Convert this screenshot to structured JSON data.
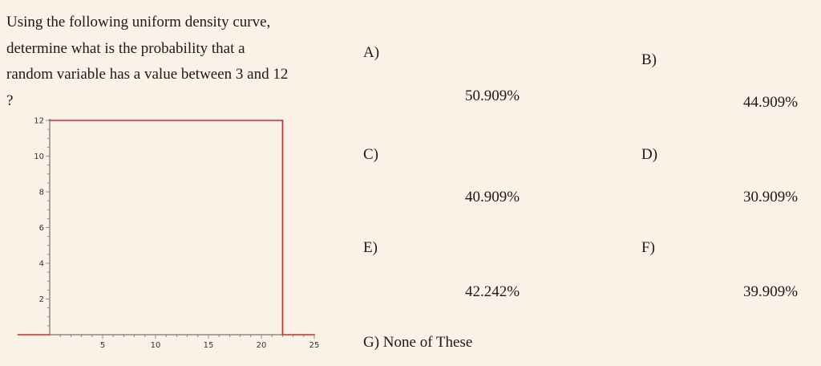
{
  "question": {
    "lines": [
      "Using the following uniform density curve,",
      "determine what is the probability that a",
      "random variable has a value between 3 and 12",
      "?"
    ]
  },
  "chart_data": {
    "type": "line",
    "x_ticks": [
      5,
      10,
      15,
      20,
      25
    ],
    "y_ticks": [
      2,
      4,
      6,
      8,
      10,
      12
    ],
    "xlim": [
      -3,
      25
    ],
    "ylim": [
      0,
      12
    ],
    "color": "#d9262a",
    "segments": [
      {
        "x": [
          -3,
          0
        ],
        "y": [
          0,
          0
        ]
      },
      {
        "x": [
          0,
          22
        ],
        "y": [
          12,
          12
        ]
      },
      {
        "x": [
          22,
          22
        ],
        "y": [
          12,
          0
        ]
      },
      {
        "x": [
          22,
          25
        ],
        "y": [
          0,
          0
        ]
      }
    ]
  },
  "options": {
    "a": {
      "letter": "A)",
      "value": "50.909%"
    },
    "b": {
      "letter": "B)",
      "value": "44.909%"
    },
    "c": {
      "letter": "C)",
      "value": "40.909%"
    },
    "d": {
      "letter": "D)",
      "value": "30.909%"
    },
    "e": {
      "letter": "E)",
      "value": "42.242%"
    },
    "f": {
      "letter": "F)",
      "value": "39.909%"
    },
    "g": {
      "label": "G) None of These"
    }
  }
}
